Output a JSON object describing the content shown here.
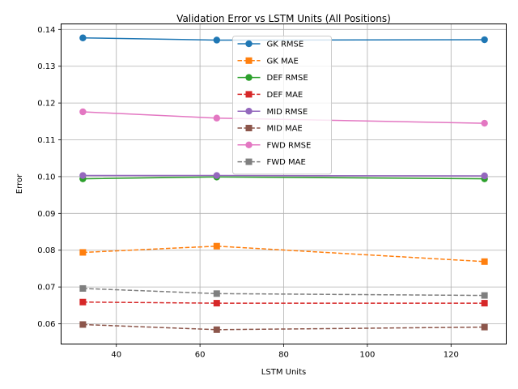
{
  "chart_data": {
    "type": "line",
    "title": "Validation Error vs LSTM Units (All Positions)",
    "xlabel": "LSTM Units",
    "ylabel": "Error",
    "x": [
      32,
      64,
      128
    ],
    "xlim": [
      26.8,
      133.2
    ],
    "ylim": [
      0.0545,
      0.1415
    ],
    "xticks": [
      40,
      60,
      80,
      100,
      120
    ],
    "yticks": [
      0.06,
      0.07,
      0.08,
      0.09,
      0.1,
      0.11,
      0.12,
      0.13,
      0.14
    ],
    "xtick_labels": [
      "40",
      "60",
      "80",
      "100",
      "120"
    ],
    "ytick_labels": [
      "0.06",
      "0.07",
      "0.08",
      "0.09",
      "0.10",
      "0.11",
      "0.12",
      "0.13",
      "0.14"
    ],
    "grid": true,
    "legend_position": "top-center",
    "series": [
      {
        "name": "GK RMSE",
        "values": [
          0.1377,
          0.1371,
          0.1372
        ],
        "color": "#1f77b4",
        "dash": "solid",
        "marker": "circle"
      },
      {
        "name": "GK MAE",
        "values": [
          0.0794,
          0.0811,
          0.0769
        ],
        "color": "#ff7f0e",
        "dash": "dashed",
        "marker": "square"
      },
      {
        "name": "DEF RMSE",
        "values": [
          0.0994,
          0.0999,
          0.0994
        ],
        "color": "#2ca02c",
        "dash": "solid",
        "marker": "circle"
      },
      {
        "name": "DEF MAE",
        "values": [
          0.0659,
          0.0656,
          0.0656
        ],
        "color": "#d62728",
        "dash": "dashed",
        "marker": "square"
      },
      {
        "name": "MID RMSE",
        "values": [
          0.1003,
          0.1003,
          0.1002
        ],
        "color": "#9467bd",
        "dash": "solid",
        "marker": "circle"
      },
      {
        "name": "MID MAE",
        "values": [
          0.0598,
          0.0584,
          0.0591
        ],
        "color": "#8c564b",
        "dash": "dashed",
        "marker": "square"
      },
      {
        "name": "FWD RMSE",
        "values": [
          0.1176,
          0.1159,
          0.1145
        ],
        "color": "#e377c2",
        "dash": "solid",
        "marker": "circle"
      },
      {
        "name": "FWD MAE",
        "values": [
          0.0696,
          0.0682,
          0.0677
        ],
        "color": "#7f7f7f",
        "dash": "dashed",
        "marker": "square"
      }
    ]
  }
}
